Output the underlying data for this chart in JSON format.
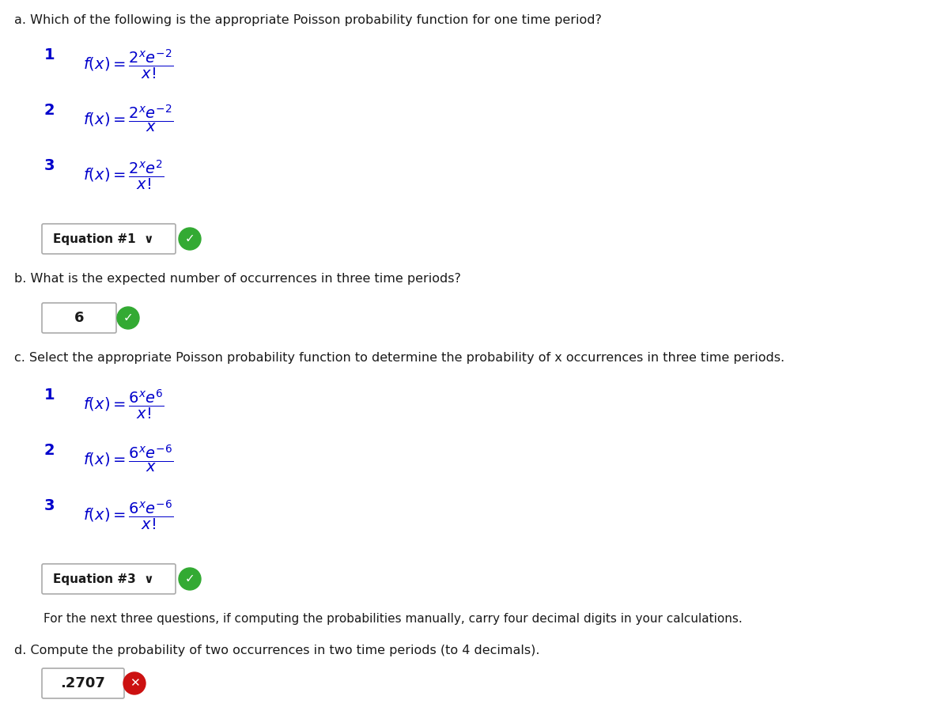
{
  "bg_color": "#ffffff",
  "text_color": "#1a1a1a",
  "blue_color": "#0000cc",
  "q_a_text": "a. Which of the following is the appropriate Poisson probability function for one time period?",
  "q_b_text": "b. What is the expected number of occurrences in three time periods?",
  "q_c_text": "c. Select the appropriate Poisson probability function to determine the probability of x occurrences in three time periods.",
  "q_d_text": "d. Compute the probability of two occurrences in two time periods (to 4 decimals).",
  "note_text": "For the next three questions, if computing the probabilities manually, carry four decimal digits in your calculations.",
  "answer_a_box": "Equation #1  ∨",
  "answer_b_box": "6",
  "answer_c_box": "Equation #3  ∨",
  "answer_d_box": ".2707"
}
